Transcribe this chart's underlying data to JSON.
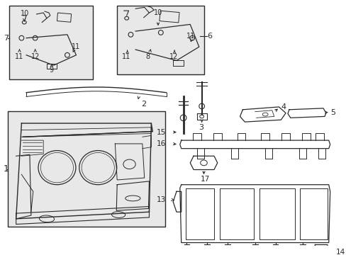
{
  "bg_color": "#ffffff",
  "box_fill": "#e8e8e8",
  "line_color": "#2a2a2a",
  "fig_width": 4.89,
  "fig_height": 3.6,
  "dpi": 100
}
